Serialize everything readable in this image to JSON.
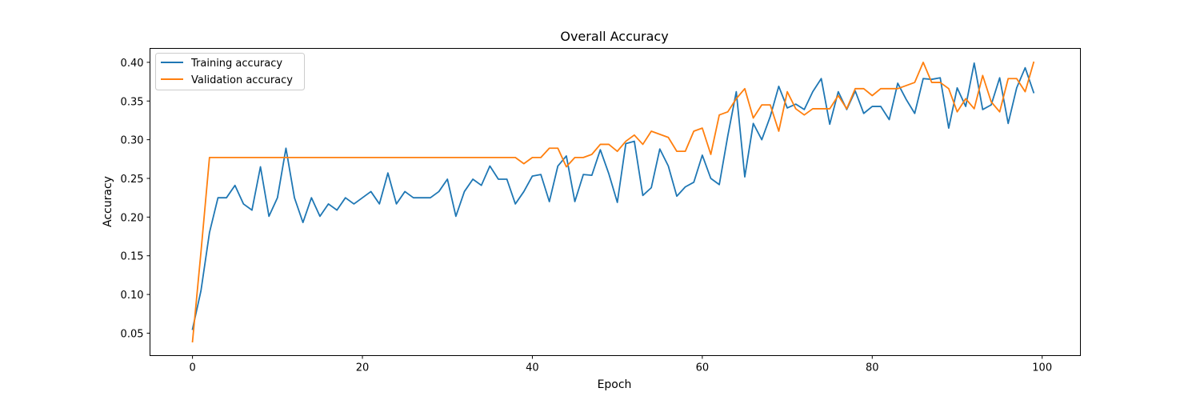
{
  "chart_data": {
    "type": "line",
    "title": "Overall Accuracy",
    "xlabel": "Epoch",
    "ylabel": "Accuracy",
    "xlim": [
      -5,
      104.5
    ],
    "ylim": [
      0.021,
      0.418
    ],
    "xticks": [
      0,
      20,
      40,
      60,
      80,
      100
    ],
    "yticks": [
      0.05,
      0.1,
      0.15,
      0.2,
      0.25,
      0.3,
      0.35,
      0.4
    ],
    "ytick_labels": [
      "0.05",
      "0.10",
      "0.15",
      "0.20",
      "0.25",
      "0.30",
      "0.35",
      "0.40"
    ],
    "grid": false,
    "legend_position": "top-left",
    "series": [
      {
        "name": "Training accuracy",
        "color": "#1f77b4",
        "values": [
          0.055,
          0.105,
          0.18,
          0.225,
          0.225,
          0.241,
          0.217,
          0.209,
          0.265,
          0.201,
          0.225,
          0.289,
          0.225,
          0.193,
          0.225,
          0.201,
          0.217,
          0.209,
          0.225,
          0.217,
          0.225,
          0.233,
          0.217,
          0.257,
          0.217,
          0.233,
          0.225,
          0.225,
          0.225,
          0.233,
          0.249,
          0.201,
          0.233,
          0.249,
          0.241,
          0.266,
          0.249,
          0.249,
          0.217,
          0.233,
          0.253,
          0.255,
          0.22,
          0.266,
          0.279,
          0.22,
          0.255,
          0.254,
          0.287,
          0.256,
          0.219,
          0.295,
          0.298,
          0.228,
          0.238,
          0.288,
          0.266,
          0.227,
          0.239,
          0.245,
          0.28,
          0.25,
          0.242,
          0.305,
          0.362,
          0.252,
          0.321,
          0.3,
          0.33,
          0.369,
          0.341,
          0.346,
          0.339,
          0.362,
          0.379,
          0.32,
          0.362,
          0.339,
          0.363,
          0.334,
          0.343,
          0.343,
          0.326,
          0.373,
          0.352,
          0.334,
          0.379,
          0.378,
          0.38,
          0.315,
          0.367,
          0.343,
          0.399,
          0.339,
          0.345,
          0.38,
          0.321,
          0.367,
          0.393,
          0.361
        ]
      },
      {
        "name": "Validation accuracy",
        "color": "#ff7f0e",
        "values": [
          0.039,
          0.155,
          0.277,
          0.277,
          0.277,
          0.277,
          0.277,
          0.277,
          0.277,
          0.277,
          0.277,
          0.277,
          0.277,
          0.277,
          0.277,
          0.277,
          0.277,
          0.277,
          0.277,
          0.277,
          0.277,
          0.277,
          0.277,
          0.277,
          0.277,
          0.277,
          0.277,
          0.277,
          0.277,
          0.277,
          0.277,
          0.277,
          0.277,
          0.277,
          0.277,
          0.277,
          0.277,
          0.277,
          0.277,
          0.269,
          0.277,
          0.277,
          0.289,
          0.289,
          0.265,
          0.277,
          0.277,
          0.281,
          0.294,
          0.294,
          0.285,
          0.298,
          0.306,
          0.294,
          0.311,
          0.307,
          0.303,
          0.285,
          0.285,
          0.311,
          0.315,
          0.281,
          0.332,
          0.336,
          0.353,
          0.366,
          0.328,
          0.345,
          0.345,
          0.311,
          0.362,
          0.34,
          0.332,
          0.34,
          0.34,
          0.34,
          0.357,
          0.34,
          0.366,
          0.366,
          0.357,
          0.366,
          0.366,
          0.366,
          0.37,
          0.374,
          0.4,
          0.374,
          0.374,
          0.366,
          0.336,
          0.353,
          0.34,
          0.383,
          0.349,
          0.336,
          0.379,
          0.379,
          0.362,
          0.4
        ]
      }
    ]
  }
}
